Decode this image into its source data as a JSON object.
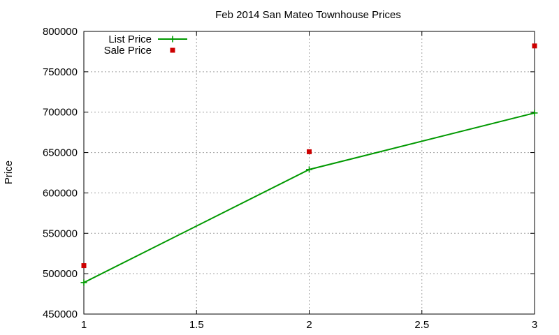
{
  "chart_data": {
    "type": "line",
    "title": "Feb 2014 San Mateo Townhouse Prices",
    "xlabel": "",
    "ylabel": "Price",
    "xlim": [
      1,
      3
    ],
    "ylim": [
      450000,
      800000
    ],
    "x_ticks": [
      "1",
      "1.5",
      "2",
      "2.5",
      "3"
    ],
    "x_tick_values": [
      1,
      1.5,
      2,
      2.5,
      3
    ],
    "y_ticks": [
      "450000",
      "500000",
      "550000",
      "600000",
      "650000",
      "700000",
      "750000",
      "800000"
    ],
    "y_tick_values": [
      450000,
      500000,
      550000,
      600000,
      650000,
      700000,
      750000,
      800000
    ],
    "grid": true,
    "legend_position": "top-left",
    "series": [
      {
        "name": "List Price",
        "style": "linespoints",
        "marker": "plus",
        "color": "#009900",
        "x": [
          1,
          2,
          3
        ],
        "y": [
          489000,
          629000,
          699000
        ]
      },
      {
        "name": "Sale Price",
        "style": "points",
        "marker": "square",
        "color": "#cc0000",
        "x": [
          1,
          2,
          3
        ],
        "y": [
          510000,
          651000,
          782000
        ]
      }
    ]
  }
}
